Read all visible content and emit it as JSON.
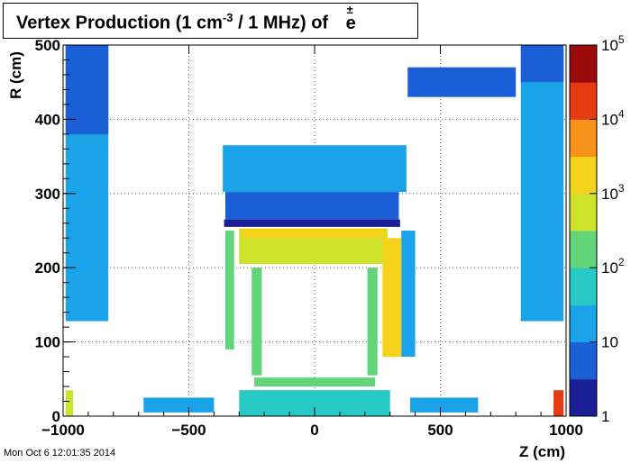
{
  "title": {
    "prefix": "Vertex Production (1 cm",
    "exponent": "-3",
    "middle": " / 1 MHz) of ",
    "particle": "e",
    "particle_mark": "±"
  },
  "timestamp": "Mon Oct  6 12:01:35 2014",
  "chart_data": {
    "type": "heatmap",
    "xlabel": "Z (cm)",
    "ylabel": "R (cm)",
    "xlim": [
      -1000,
      1000
    ],
    "ylim": [
      0,
      500
    ],
    "zlim": [
      1,
      100000
    ],
    "zscale": "log",
    "x_ticks": [
      -1000,
      -500,
      0,
      500,
      1000
    ],
    "x_tick_labels": [
      "−1000",
      "−500",
      "0",
      "500",
      "1000"
    ],
    "y_ticks": [
      0,
      100,
      200,
      300,
      400,
      500
    ],
    "y_tick_labels": [
      "0",
      "100",
      "200",
      "300",
      "400",
      "500"
    ],
    "z_ticks": [
      1,
      10,
      100,
      1000,
      10000,
      100000
    ],
    "z_tick_labels": [
      {
        "base": "1",
        "exp": ""
      },
      {
        "base": "10",
        "exp": ""
      },
      {
        "base": "10",
        "exp": "2"
      },
      {
        "base": "10",
        "exp": "3"
      },
      {
        "base": "10",
        "exp": "4"
      },
      {
        "base": "10",
        "exp": "5"
      }
    ],
    "grid": true,
    "colorbar": "right",
    "regions": [
      {
        "name": "endcap-left-outer",
        "z": [
          -990,
          -820
        ],
        "r": [
          128,
          500
        ],
        "level": 10
      },
      {
        "name": "endcap-left-top",
        "z": [
          -990,
          -820
        ],
        "r": [
          380,
          500
        ],
        "level": 5
      },
      {
        "name": "endcap-right-outer",
        "z": [
          820,
          990
        ],
        "r": [
          128,
          500
        ],
        "level": 10
      },
      {
        "name": "endcap-right-top",
        "z": [
          820,
          990
        ],
        "r": [
          450,
          500
        ],
        "level": 5
      },
      {
        "name": "top-arc",
        "z": [
          370,
          800
        ],
        "r": [
          430,
          470
        ],
        "level": 4
      },
      {
        "name": "outer-calorimeter",
        "z": [
          -365,
          365
        ],
        "r": [
          302,
          365
        ],
        "level": 12
      },
      {
        "name": "outer-calorimeter-segments",
        "z": [
          -355,
          335
        ],
        "r": [
          265,
          302
        ],
        "level": 8
      },
      {
        "name": "coil-gap",
        "z": [
          -360,
          340
        ],
        "r": [
          255,
          265
        ],
        "level": 1
      },
      {
        "name": "ecal-inner-band",
        "z": [
          -300,
          290
        ],
        "r": [
          205,
          253
        ],
        "level": 500
      },
      {
        "name": "ecal-top-edge",
        "z": [
          -290,
          280
        ],
        "r": [
          240,
          253
        ],
        "level": 2000
      },
      {
        "name": "barrel-left-wall",
        "z": [
          -355,
          -320
        ],
        "r": [
          90,
          250
        ],
        "level": 300
      },
      {
        "name": "barrel-right-wall",
        "z": [
          270,
          345
        ],
        "r": [
          80,
          240
        ],
        "level": 3000
      },
      {
        "name": "barrel-right-outer",
        "z": [
          345,
          400
        ],
        "r": [
          80,
          250
        ],
        "level": 30
      },
      {
        "name": "tracker-left-post",
        "z": [
          -250,
          -210
        ],
        "r": [
          55,
          200
        ],
        "level": 100
      },
      {
        "name": "tracker-right-post",
        "z": [
          210,
          250
        ],
        "r": [
          55,
          200
        ],
        "level": 100
      },
      {
        "name": "tracker-floor",
        "z": [
          -240,
          240
        ],
        "r": [
          40,
          52
        ],
        "level": 200
      },
      {
        "name": "beamline-left",
        "z": [
          -680,
          -400
        ],
        "r": [
          5,
          25
        ],
        "level": 30
      },
      {
        "name": "beamline-center",
        "z": [
          -300,
          300
        ],
        "r": [
          0,
          35
        ],
        "level": 80
      },
      {
        "name": "beamline-right",
        "z": [
          380,
          650
        ],
        "r": [
          5,
          25
        ],
        "level": 30
      },
      {
        "name": "forward-left",
        "z": [
          -990,
          -960
        ],
        "r": [
          0,
          35
        ],
        "level": 800
      },
      {
        "name": "forward-right",
        "z": [
          950,
          990
        ],
        "r": [
          0,
          35
        ],
        "level": 20000
      }
    ]
  }
}
